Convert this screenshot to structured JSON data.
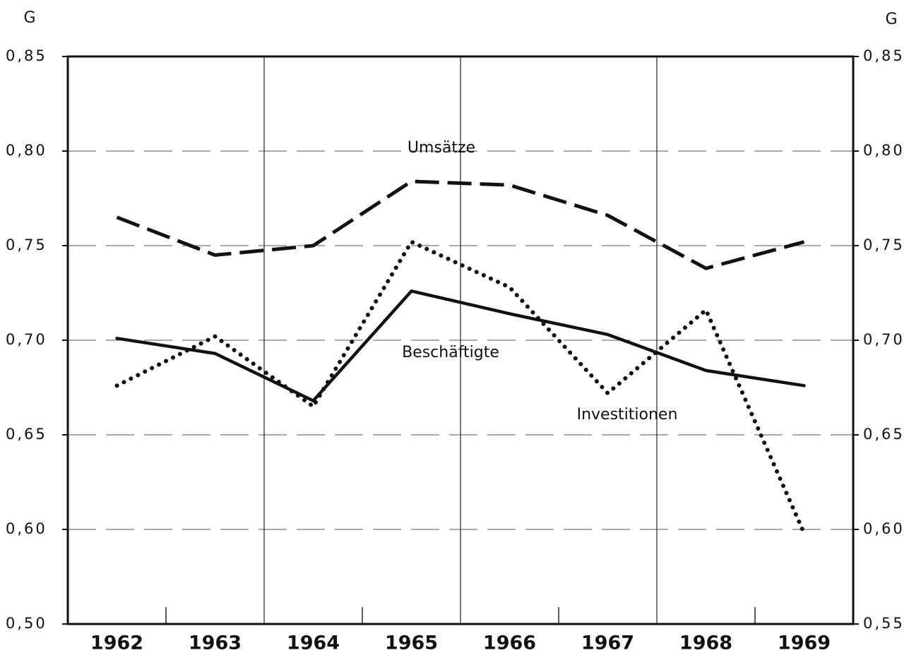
{
  "chart_data": {
    "type": "line",
    "y_label": "G",
    "y2_label": "G",
    "categories": [
      "1962",
      "1963",
      "1964",
      "1965",
      "1966",
      "1967",
      "1968",
      "1969"
    ],
    "series": [
      {
        "name": "Umsätze",
        "color": "#111111",
        "style": "dashed",
        "values": [
          0.765,
          0.745,
          0.75,
          0.784,
          0.782,
          0.766,
          0.738,
          0.752
        ]
      },
      {
        "name": "Beschäftigte",
        "color": "#111111",
        "style": "solid",
        "values": [
          0.701,
          0.693,
          0.668,
          0.726,
          0.714,
          0.703,
          0.684,
          0.676
        ]
      },
      {
        "name": "Investitionen",
        "color": "#111111",
        "style": "dotted",
        "values": [
          0.676,
          0.702,
          0.665,
          0.752,
          0.728,
          0.672,
          0.716,
          0.598
        ]
      }
    ],
    "ylim": [
      0.55,
      0.85
    ],
    "yticks": [
      {
        "value": 0.85,
        "label": "0,85"
      },
      {
        "value": 0.8,
        "label": "0,80"
      },
      {
        "value": 0.75,
        "label": "0,75"
      },
      {
        "value": 0.7,
        "label": "0,70"
      },
      {
        "value": 0.65,
        "label": "0,65"
      },
      {
        "value": 0.6,
        "label": "0,60"
      },
      {
        "value": 0.5,
        "label": "0,50"
      }
    ],
    "y2lim": [
      0.55,
      0.85
    ],
    "y2ticks": [
      {
        "value": 0.85,
        "label": "0,85"
      },
      {
        "value": 0.8,
        "label": "0,80"
      },
      {
        "value": 0.75,
        "label": "0,75"
      },
      {
        "value": 0.7,
        "label": "0,70"
      },
      {
        "value": 0.65,
        "label": "0,65"
      },
      {
        "value": 0.6,
        "label": "0,60"
      },
      {
        "value": 0.55,
        "label": "0,55"
      }
    ],
    "grid": true
  }
}
